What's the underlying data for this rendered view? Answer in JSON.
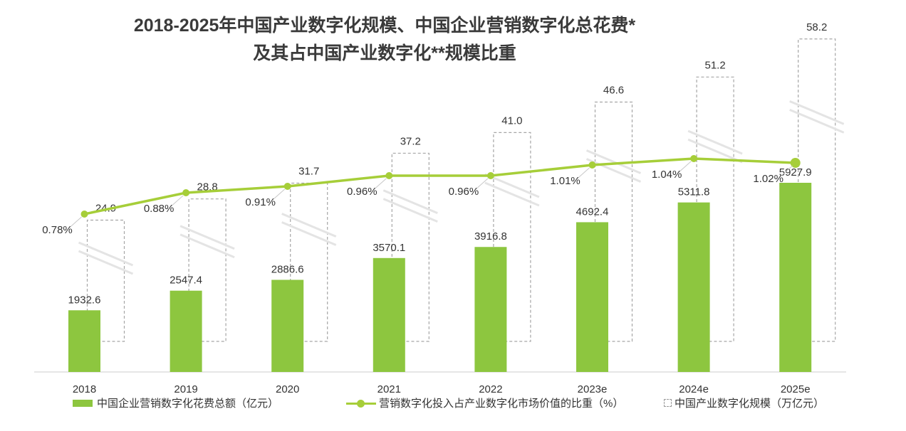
{
  "title_line1": "2018-2025年中国产业数字化规模、中国企业营销数字化总花费*",
  "title_line2": "及其占中国产业数字化**规模比重",
  "chart_data": {
    "type": "bar+line",
    "categories": [
      "2018",
      "2019",
      "2020",
      "2021",
      "2022",
      "2023e",
      "2024e",
      "2025e"
    ],
    "series": [
      {
        "name": "中国企业营销数字化花费总额（亿元）",
        "kind": "bar",
        "color": "#8dc63f",
        "values": [
          1932.6,
          2547.4,
          2886.6,
          3570.1,
          3916.8,
          4692.4,
          5311.8,
          5927.9
        ],
        "labels": [
          "1932.6",
          "2547.4",
          "2886.6",
          "3570.1",
          "3916.8",
          "4692.4",
          "5311.8",
          "5927.9"
        ]
      },
      {
        "name": "营销数字化投入占产业数字化市场价值的比重（%）",
        "kind": "line",
        "color": "#a6ce39",
        "values": [
          0.78,
          0.88,
          0.91,
          0.96,
          0.96,
          1.01,
          1.04,
          1.02
        ],
        "labels": [
          "0.78%",
          "0.88%",
          "0.91%",
          "0.96%",
          "0.96%",
          "1.01%",
          "1.04%",
          "1.02%"
        ]
      },
      {
        "name": "中国产业数字化规模（万亿元）",
        "kind": "dashed-bar",
        "color": "#aaaaaa",
        "values": [
          24.9,
          28.8,
          31.7,
          37.2,
          41.0,
          46.6,
          51.2,
          58.2
        ],
        "labels": [
          "24.9",
          "28.8",
          "31.7",
          "37.2",
          "41.0",
          "46.6",
          "51.2",
          "58.2"
        ]
      }
    ],
    "axis_break": true
  },
  "legend": {
    "bar": "中国企业营销数字化花费总额（亿元）",
    "line": "营销数字化投入占产业数字化市场价值的比重（%）",
    "dashed": "中国产业数字化规模（万亿元）"
  }
}
